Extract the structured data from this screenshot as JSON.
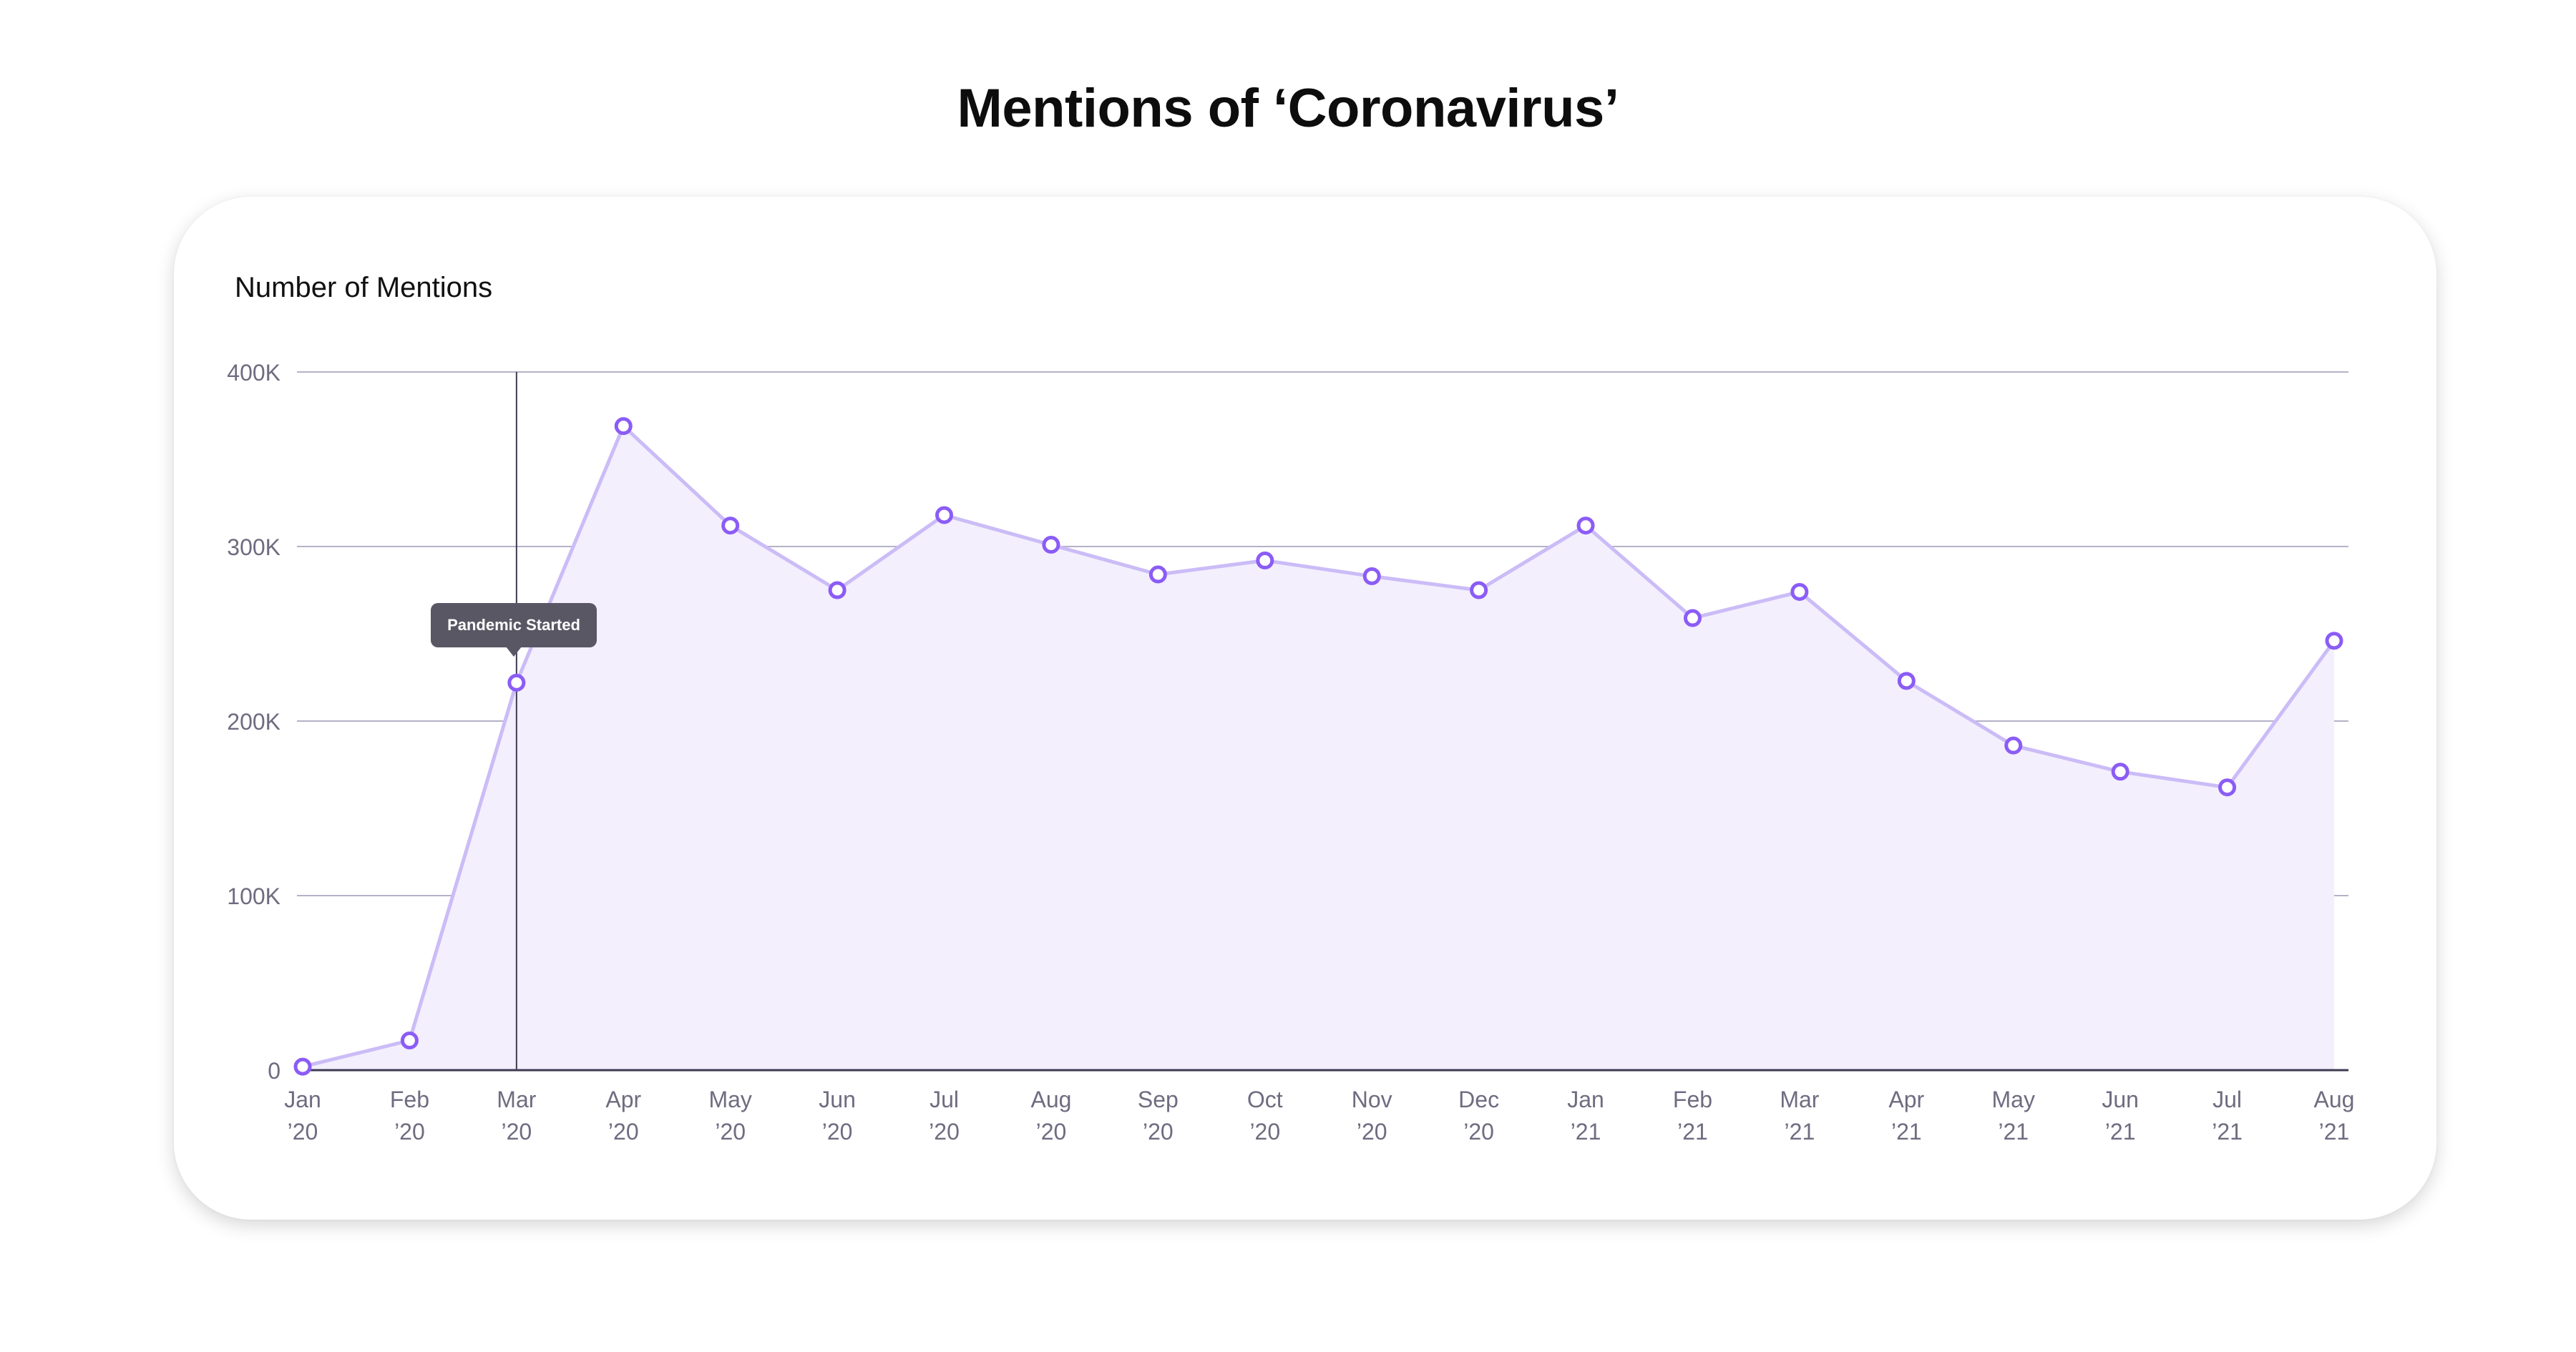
{
  "title": "Mentions of ‘Coronavirus’",
  "chart_data": {
    "type": "area",
    "title": "Mentions of ‘Coronavirus’",
    "ylabel": "Number of Mentions",
    "xlabel": "",
    "ylim": [
      0,
      400000
    ],
    "yticks": [
      {
        "value": 0,
        "label": "0"
      },
      {
        "value": 100000,
        "label": "100K"
      },
      {
        "value": 200000,
        "label": "200K"
      },
      {
        "value": 300000,
        "label": "300K"
      },
      {
        "value": 400000,
        "label": "400K"
      }
    ],
    "categories": [
      {
        "month": "Jan",
        "year": "’20"
      },
      {
        "month": "Feb",
        "year": "’20"
      },
      {
        "month": "Mar",
        "year": "’20"
      },
      {
        "month": "Apr",
        "year": "’20"
      },
      {
        "month": "May",
        "year": "’20"
      },
      {
        "month": "Jun",
        "year": "’20"
      },
      {
        "month": "Jul",
        "year": "’20"
      },
      {
        "month": "Aug",
        "year": "’20"
      },
      {
        "month": "Sep",
        "year": "’20"
      },
      {
        "month": "Oct",
        "year": "’20"
      },
      {
        "month": "Nov",
        "year": "’20"
      },
      {
        "month": "Dec",
        "year": "’20"
      },
      {
        "month": "Jan",
        "year": "’21"
      },
      {
        "month": "Feb",
        "year": "’21"
      },
      {
        "month": "Mar",
        "year": "’21"
      },
      {
        "month": "Apr",
        "year": "’21"
      },
      {
        "month": "May",
        "year": "’21"
      },
      {
        "month": "Jun",
        "year": "’21"
      },
      {
        "month": "Jul",
        "year": "’21"
      },
      {
        "month": "Aug",
        "year": "’21"
      }
    ],
    "values": [
      2000,
      17000,
      222000,
      369000,
      312000,
      275000,
      318000,
      301000,
      284000,
      292000,
      283000,
      275000,
      312000,
      259000,
      274000,
      223000,
      186000,
      171000,
      162000,
      246000
    ],
    "grid": true,
    "legend": "none",
    "annotation": {
      "label": "Pandemic Started",
      "category_index": 2
    }
  },
  "colors": {
    "line": "#cbbcf7",
    "area": "#f3effd",
    "marker": "#8b5cf6",
    "gridline": "#b5b1c8",
    "axis": "#3d3a52",
    "tick_label": "#6f6c80",
    "annotation_bg": "#5a5765"
  }
}
